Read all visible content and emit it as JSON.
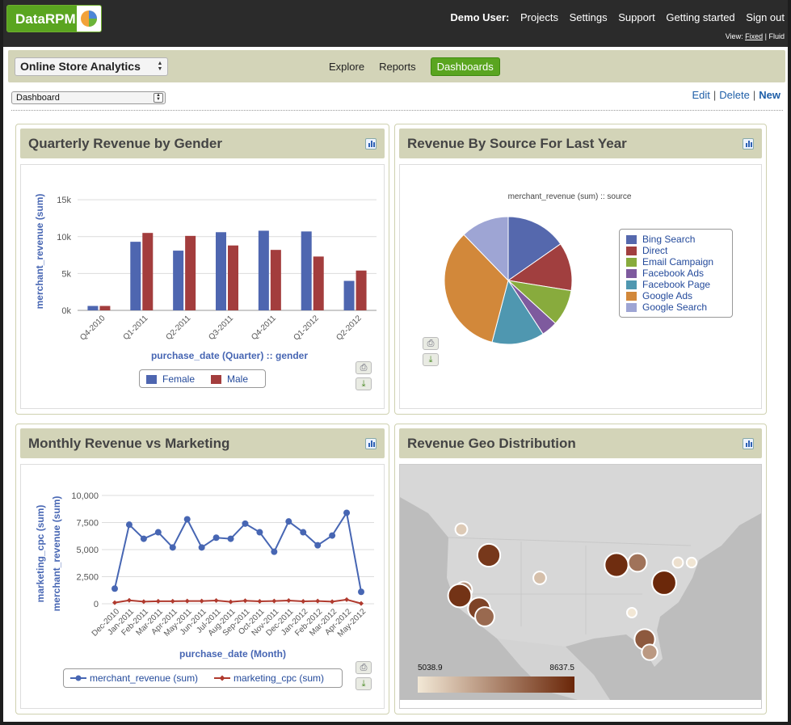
{
  "app": {
    "logo": "DataRPM",
    "user_label": "Demo User:",
    "nav": [
      "Projects",
      "Settings",
      "Support",
      "Getting started",
      "Sign out"
    ],
    "view_label": "View:",
    "view_fixed": "Fixed",
    "view_sep": "|",
    "view_fluid": "Fluid"
  },
  "subbar": {
    "project": "Online Store Analytics",
    "tabs": [
      "Explore",
      "Reports"
    ],
    "active_tab": "Dashboards"
  },
  "toolbar": {
    "dashboard": "Dashboard",
    "edit": "Edit",
    "sep": "|",
    "delete": "Delete",
    "new": "New"
  },
  "icons": [
    "chart-icon",
    "print-icon",
    "download-icon",
    "stepper-icon",
    "logo-pie-icon"
  ],
  "colors": {
    "green_accent": "#5aa520",
    "panel_header": "#d3d4b8",
    "female": "#4e66b0",
    "male": "#a33d3d"
  },
  "panels": {
    "gender": {
      "title": "Quarterly Revenue by Gender"
    },
    "source": {
      "title": "Revenue By Source For Last Year"
    },
    "monthly": {
      "title": "Monthly Revenue vs Marketing"
    },
    "geo": {
      "title": "Revenue Geo Distribution"
    }
  },
  "chart_data": [
    {
      "type": "bar",
      "categories": [
        "Q4-2010",
        "Q1-2011",
        "Q2-2011",
        "Q3-2011",
        "Q4-2011",
        "Q1-2012",
        "Q2-2012"
      ],
      "series": [
        {
          "name": "Female",
          "color": "#4e66b0",
          "values": [
            600,
            9300,
            8100,
            10600,
            10800,
            10700,
            4000
          ]
        },
        {
          "name": "Male",
          "color": "#a33d3d",
          "values": [
            600,
            10500,
            10100,
            8800,
            8200,
            7300,
            5400
          ]
        }
      ],
      "xlabel": "purchase_date (Quarter) :: gender",
      "ylabel": "merchant_revenue (sum)",
      "yticks": [
        "0k",
        "5k",
        "10k",
        "15k"
      ],
      "ylim": [
        0,
        16000
      ],
      "grid": true,
      "legend": "bottom"
    },
    {
      "type": "pie",
      "title": "merchant_revenue (sum) :: source",
      "labels": [
        "Bing Search",
        "Direct",
        "Email Campaign",
        "Facebook Ads",
        "Facebook Page",
        "Google Ads",
        "Google Search"
      ],
      "values": [
        15,
        12,
        9,
        4,
        13,
        33,
        12
      ],
      "colors": [
        "#5568ad",
        "#a13f3f",
        "#88ab3d",
        "#7e5a9e",
        "#4f97b0",
        "#d2883a",
        "#9ea5d4"
      ],
      "legend": "right"
    },
    {
      "type": "line",
      "categories": [
        "Dec-2010",
        "Jan-2011",
        "Feb-2011",
        "Mar-2011",
        "Apr-2011",
        "May-2011",
        "Jun-2011",
        "Jul-2011",
        "Aug-2011",
        "Sep-2011",
        "Oct-2011",
        "Nov-2011",
        "Dec-2011",
        "Jan-2012",
        "Feb-2012",
        "Mar-2012",
        "Apr-2012",
        "May-2012"
      ],
      "series": [
        {
          "name": "merchant_revenue (sum)",
          "color": "#4766b3",
          "values": [
            1400,
            7300,
            6000,
            6600,
            5200,
            7800,
            5200,
            6100,
            6000,
            7400,
            6600,
            4800,
            7600,
            6600,
            5400,
            6300,
            8400,
            1100
          ]
        },
        {
          "name": "marketing_cpc (sum)",
          "color": "#b03a2e",
          "values": [
            100,
            320,
            200,
            230,
            230,
            250,
            250,
            300,
            180,
            280,
            220,
            250,
            300,
            220,
            250,
            200,
            380,
            30
          ]
        }
      ],
      "xlabel": "purchase_date (Month)",
      "ylabel": "merchant_revenue (sum)",
      "ylabel2": "marketing_cpc (sum)",
      "yticks": [
        "0",
        "2,500",
        "5,000",
        "7,500",
        "10,000"
      ],
      "ylim": [
        0,
        10000
      ],
      "grid": true,
      "legend": "bottom"
    },
    {
      "type": "scatter",
      "title": "Revenue Geo Distribution",
      "legend_min": "5038.9",
      "legend_max": "8637.5",
      "points": [
        {
          "x": 76,
          "y": 80,
          "value": 5600
        },
        {
          "x": 110,
          "y": 112,
          "value": 8300
        },
        {
          "x": 79,
          "y": 155,
          "value": 6800
        },
        {
          "x": 74,
          "y": 162,
          "value": 8400
        },
        {
          "x": 98,
          "y": 178,
          "value": 8100
        },
        {
          "x": 105,
          "y": 188,
          "value": 7400
        },
        {
          "x": 173,
          "y": 140,
          "value": 5800
        },
        {
          "x": 268,
          "y": 124,
          "value": 8500
        },
        {
          "x": 294,
          "y": 121,
          "value": 7200
        },
        {
          "x": 344,
          "y": 121,
          "value": 5200
        },
        {
          "x": 361,
          "y": 121,
          "value": 5100
        },
        {
          "x": 327,
          "y": 146,
          "value": 8600
        },
        {
          "x": 287,
          "y": 183,
          "value": 5050
        },
        {
          "x": 303,
          "y": 216,
          "value": 7700
        },
        {
          "x": 309,
          "y": 232,
          "value": 6500
        }
      ]
    }
  ]
}
